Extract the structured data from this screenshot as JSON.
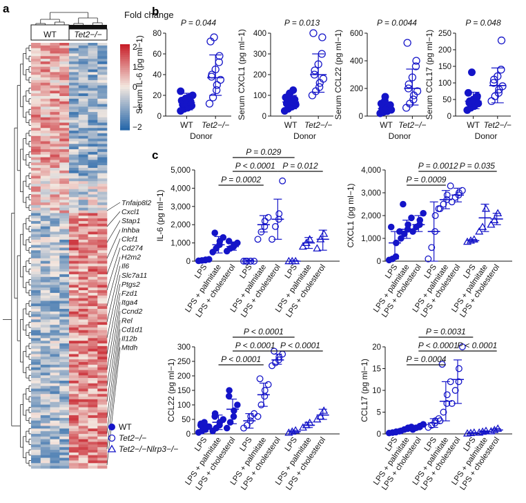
{
  "panel_labels": {
    "a": "a",
    "b": "b",
    "c": "c"
  },
  "legend_markers": {
    "items": [
      {
        "label": "WT",
        "marker": "filled-circle"
      },
      {
        "label": "Tet2−/−",
        "marker": "open-circle"
      },
      {
        "label": "Tet2−/−Nlrp3−/−",
        "marker": "open-triangle"
      }
    ]
  },
  "colors": {
    "blue": "#1414c8",
    "red": "#c8202a",
    "neutral": "#f3e8e0"
  },
  "chart_data": [
    {
      "id": "heatmap",
      "type": "heatmap",
      "group_labels": [
        "WT",
        "Tet2−/−"
      ],
      "colorbar_title": "Fold change",
      "colorbar_ticks": [
        "2",
        "1",
        "0",
        "−1",
        "−2"
      ],
      "colorbar_range": [
        -2,
        2
      ],
      "n_rows": 160,
      "n_cols": 8,
      "gene_labels": [
        "Tnfaip8l2",
        "Cxcl1",
        "Stap1",
        "Inhba",
        "Clcf1",
        "Cd274",
        "H2m2",
        "Il6",
        "Slc7a11",
        "Ptgs2",
        "Fzd1",
        "Itga4",
        "Ccnd2",
        "Rel",
        "Cd1d1",
        "Il12b",
        "Mtdh"
      ]
    },
    {
      "id": "b1",
      "type": "scatter",
      "group_labels": [
        "WT",
        "Tet2−/−"
      ],
      "xlabel": "Donor",
      "ylabel": "Serum IL-6 (pg ml−1)",
      "p_value": "P = 0.044",
      "ylim": [
        0,
        80
      ],
      "yticks": [
        "0",
        "20",
        "40",
        "60",
        "80"
      ],
      "groups": [
        {
          "marker": "filled-circle",
          "mean": 13,
          "sd": [
            6,
            22
          ],
          "points": [
            5,
            7,
            8,
            9,
            10,
            11,
            12,
            12,
            13,
            14,
            15,
            16,
            17,
            18,
            20,
            24
          ]
        },
        {
          "marker": "open-circle",
          "mean": 37,
          "sd": [
            20,
            59
          ],
          "points": [
            12,
            18,
            25,
            30,
            35,
            38,
            40,
            45,
            52,
            58,
            72,
            76
          ]
        }
      ]
    },
    {
      "id": "b2",
      "type": "scatter",
      "group_labels": [
        "WT",
        "Tet2−/−"
      ],
      "xlabel": "Donor",
      "ylabel": "Serum CXCL1 (pg ml−1)",
      "p_value": "P = 0.013",
      "ylim": [
        0,
        400
      ],
      "yticks": [
        "0",
        "100",
        "200",
        "300",
        "400"
      ],
      "groups": [
        {
          "marker": "filled-circle",
          "mean": 68,
          "sd": [
            35,
            100
          ],
          "points": [
            25,
            35,
            45,
            50,
            55,
            60,
            65,
            70,
            75,
            80,
            90,
            100,
            110,
            125
          ]
        },
        {
          "marker": "open-circle",
          "mean": 200,
          "sd": [
            115,
            300
          ],
          "points": [
            100,
            120,
            140,
            160,
            180,
            200,
            220,
            250,
            300,
            380,
            400
          ]
        }
      ]
    },
    {
      "id": "b3",
      "type": "scatter",
      "group_labels": [
        "WT",
        "Tet2−/−"
      ],
      "xlabel": "Donor",
      "ylabel": "Serum CCL22 (pg ml−1)",
      "p_value": "P = 0.0044",
      "ylim": [
        0,
        600
      ],
      "yticks": [
        "0",
        "200",
        "400",
        "600"
      ],
      "groups": [
        {
          "marker": "filled-circle",
          "mean": 55,
          "sd": [
            25,
            90
          ],
          "points": [
            20,
            30,
            35,
            40,
            45,
            50,
            55,
            60,
            70,
            80,
            90,
            110,
            140
          ]
        },
        {
          "marker": "open-circle",
          "mean": 200,
          "sd": [
            80,
            340
          ],
          "points": [
            60,
            90,
            120,
            150,
            180,
            200,
            230,
            280,
            360,
            400,
            530
          ]
        }
      ]
    },
    {
      "id": "b4",
      "type": "scatter",
      "group_labels": [
        "WT",
        "Tet2−/−"
      ],
      "xlabel": "Donor",
      "ylabel": "Serum CCL17 (pg ml−1)",
      "p_value": "P = 0.048",
      "ylim": [
        0,
        250
      ],
      "yticks": [
        "0",
        "50",
        "100",
        "150",
        "200",
        "250"
      ],
      "groups": [
        {
          "marker": "filled-circle",
          "mean": 45,
          "sd": [
            22,
            72
          ],
          "points": [
            18,
            25,
            30,
            35,
            38,
            40,
            45,
            50,
            55,
            60,
            70,
            132
          ]
        },
        {
          "marker": "open-circle",
          "mean": 92,
          "sd": [
            40,
            145
          ],
          "points": [
            45,
            60,
            70,
            80,
            90,
            100,
            110,
            120,
            140,
            228
          ]
        }
      ]
    },
    {
      "id": "c1",
      "type": "scatter",
      "ylabel": "IL-6 (pg ml−1)",
      "ylim": [
        0,
        5000
      ],
      "yticks": [
        "0",
        "1,000",
        "2,000",
        "3,000",
        "4,000",
        "5,000"
      ],
      "categories": [
        "LPS",
        "LPS + palmitate",
        "LPS + cholesterol",
        "LPS",
        "LPS + palmitate",
        "LPS + cholesterol",
        "LPS",
        "LPS + palmitate",
        "LPS + cholesterol"
      ],
      "brackets": [
        {
          "from": 1,
          "to": 4,
          "label": "P = 0.0002",
          "level": 0
        },
        {
          "from": 2,
          "to": 5,
          "label": "P < 0.0001",
          "level": 1
        },
        {
          "from": 5,
          "to": 8,
          "label": "P = 0.012",
          "level": 1
        },
        {
          "from": 2,
          "to": 6,
          "label": "P = 0.029",
          "level": 2
        }
      ],
      "groups": [
        {
          "marker": "filled-circle",
          "mean": 50,
          "sd": [
            0,
            100
          ],
          "points": [
            20,
            40,
            60,
            80,
            100
          ]
        },
        {
          "marker": "filled-circle",
          "mean": 900,
          "sd": [
            450,
            1350
          ],
          "points": [
            500,
            700,
            900,
            1100,
            1300,
            1550
          ]
        },
        {
          "marker": "filled-circle",
          "mean": 800,
          "sd": [
            600,
            1050
          ],
          "points": [
            550,
            700,
            800,
            900,
            1000,
            1100
          ]
        },
        {
          "marker": "open-circle",
          "mean": 0,
          "sd": [
            0,
            50
          ],
          "points": [
            0,
            0,
            0,
            0,
            0,
            0
          ]
        },
        {
          "marker": "open-circle",
          "mean": 2000,
          "sd": [
            1600,
            2500
          ],
          "points": [
            1200,
            1600,
            1900,
            2200,
            2400
          ]
        },
        {
          "marker": "open-circle",
          "mean": 2300,
          "sd": [
            1200,
            3400
          ],
          "points": [
            1200,
            1900,
            2300,
            2600,
            4400
          ]
        },
        {
          "marker": "open-triangle",
          "mean": 0,
          "sd": [
            0,
            30
          ],
          "points": [
            0,
            0,
            0
          ]
        },
        {
          "marker": "open-triangle",
          "mean": 1000,
          "sd": [
            700,
            1300
          ],
          "points": [
            800,
            1000,
            1200
          ]
        },
        {
          "marker": "open-triangle",
          "mean": 1200,
          "sd": [
            600,
            1700
          ],
          "points": [
            700,
            1200,
            1500
          ]
        }
      ]
    },
    {
      "id": "c2",
      "type": "scatter",
      "ylabel": "CXCL1 (pg ml−1)",
      "ylim": [
        0,
        4000
      ],
      "yticks": [
        "0",
        "1,000",
        "2,000",
        "3,000",
        "4,000"
      ],
      "categories": [
        "LPS",
        "LPS + palmitate",
        "LPS + cholesterol",
        "LPS",
        "LPS + palmitate",
        "LPS + cholesterol",
        "LPS",
        "LPS + palmitate",
        "LPS + cholesterol"
      ],
      "brackets": [
        {
          "from": 1,
          "to": 4,
          "label": "P = 0.0009",
          "level": 0
        },
        {
          "from": 2,
          "to": 5,
          "label": "P = 0.0012",
          "level": 1
        },
        {
          "from": 5,
          "to": 8,
          "label": "P = 0.035",
          "level": 1
        }
      ],
      "groups": [
        {
          "marker": "filled-circle",
          "mean": 800,
          "sd": [
            100,
            1300
          ],
          "points": [
            50,
            100,
            200,
            800,
            1300,
            1500
          ]
        },
        {
          "marker": "filled-circle",
          "mean": 1400,
          "sd": [
            1000,
            1800
          ],
          "points": [
            1000,
            1200,
            1400,
            1600,
            1900,
            2500
          ]
        },
        {
          "marker": "filled-circle",
          "mean": 1600,
          "sd": [
            1300,
            2000
          ],
          "points": [
            1300,
            1500,
            1600,
            1800,
            2100
          ]
        },
        {
          "marker": "open-circle",
          "mean": 1300,
          "sd": [
            0,
            2600
          ],
          "points": [
            100,
            600,
            1300,
            2000,
            2300
          ]
        },
        {
          "marker": "open-circle",
          "mean": 2700,
          "sd": [
            2300,
            3100
          ],
          "points": [
            2300,
            2500,
            2700,
            2900,
            3300
          ]
        },
        {
          "marker": "open-circle",
          "mean": 2900,
          "sd": [
            2600,
            3200
          ],
          "points": [
            2600,
            2800,
            2900,
            3000,
            3100
          ]
        },
        {
          "marker": "open-triangle",
          "mean": 900,
          "sd": [
            850,
            950
          ],
          "points": [
            850,
            900,
            950
          ]
        },
        {
          "marker": "open-triangle",
          "mean": 1900,
          "sd": [
            1300,
            2500
          ],
          "points": [
            1300,
            1500,
            2300
          ]
        },
        {
          "marker": "open-triangle",
          "mean": 1850,
          "sd": [
            1600,
            2100
          ],
          "points": [
            1600,
            1800,
            2100
          ]
        }
      ]
    },
    {
      "id": "c3",
      "type": "scatter",
      "ylabel": "CCL22 (pg ml−1)",
      "ylim": [
        0,
        300
      ],
      "yticks": [
        "0",
        "50",
        "100",
        "150",
        "200",
        "250",
        "300"
      ],
      "categories": [
        "LPS",
        "LPS + palmitate",
        "LPS + cholesterol",
        "LPS",
        "LPS + palmitate",
        "LPS + cholesterol",
        "LPS",
        "LPS + palmitate",
        "LPS + cholesterol"
      ],
      "brackets": [
        {
          "from": 1,
          "to": 4,
          "label": "P < 0.0001",
          "level": 0
        },
        {
          "from": 2,
          "to": 5,
          "label": "P < 0.0001",
          "level": 1
        },
        {
          "from": 5,
          "to": 8,
          "label": "P < 0.0001",
          "level": 1
        },
        {
          "from": 2,
          "to": 6,
          "label": "P < 0.0001",
          "level": 2
        }
      ],
      "groups": [
        {
          "marker": "filled-circle",
          "mean": 22,
          "sd": [
            8,
            35
          ],
          "points": [
            5,
            10,
            15,
            20,
            25,
            30,
            35,
            40
          ]
        },
        {
          "marker": "filled-circle",
          "mean": 40,
          "sd": [
            15,
            65
          ],
          "points": [
            10,
            20,
            30,
            40,
            50,
            60,
            70
          ]
        },
        {
          "marker": "filled-circle",
          "mean": 85,
          "sd": [
            35,
            120
          ],
          "points": [
            20,
            40,
            60,
            80,
            100,
            130,
            150
          ]
        },
        {
          "marker": "open-circle",
          "mean": 45,
          "sd": [
            20,
            70
          ],
          "points": [
            20,
            30,
            45,
            60,
            70
          ]
        },
        {
          "marker": "open-circle",
          "mean": 135,
          "sd": [
            95,
            175
          ],
          "points": [
            60,
            100,
            130,
            150,
            170,
            190
          ]
        },
        {
          "marker": "open-circle",
          "mean": 255,
          "sd": [
            240,
            275
          ],
          "points": [
            235,
            245,
            255,
            265,
            275,
            285
          ]
        },
        {
          "marker": "open-triangle",
          "mean": 8,
          "sd": [
            4,
            12
          ],
          "points": [
            4,
            8,
            12
          ]
        },
        {
          "marker": "open-triangle",
          "mean": 30,
          "sd": [
            22,
            40
          ],
          "points": [
            22,
            30,
            38
          ]
        },
        {
          "marker": "open-triangle",
          "mean": 65,
          "sd": [
            50,
            85
          ],
          "points": [
            50,
            60,
            80
          ]
        }
      ]
    },
    {
      "id": "c4",
      "type": "scatter",
      "ylabel": "CCL17 (pg ml−1)",
      "ylim": [
        0,
        20
      ],
      "yticks": [
        "0",
        "5",
        "10",
        "15",
        "20"
      ],
      "categories": [
        "LPS",
        "LPS + palmitate",
        "LPS + cholesterol",
        "LPS",
        "LPS + palmitate",
        "LPS + cholesterol",
        "LPS",
        "LPS + palmitate",
        "LPS + cholesterol"
      ],
      "brackets": [
        {
          "from": 1,
          "to": 4,
          "label": "P = 0.0004",
          "level": 0
        },
        {
          "from": 2,
          "to": 5,
          "label": "P < 0.0001",
          "level": 1
        },
        {
          "from": 5,
          "to": 8,
          "label": "P < 0.0001",
          "level": 1
        },
        {
          "from": 2,
          "to": 6,
          "label": "P = 0.0031",
          "level": 2
        }
      ],
      "groups": [
        {
          "marker": "filled-circle",
          "mean": 0.4,
          "sd": [
            0.2,
            0.6
          ],
          "points": [
            0.2,
            0.3,
            0.4,
            0.5,
            0.6
          ]
        },
        {
          "marker": "filled-circle",
          "mean": 1.2,
          "sd": [
            0.8,
            1.6
          ],
          "points": [
            0.7,
            1.0,
            1.2,
            1.4,
            1.6
          ]
        },
        {
          "marker": "filled-circle",
          "mean": 1.6,
          "sd": [
            1.2,
            2.0
          ],
          "points": [
            1.0,
            1.4,
            1.6,
            1.8,
            2.2
          ]
        },
        {
          "marker": "open-circle",
          "mean": 2.5,
          "sd": [
            1.5,
            3.5
          ],
          "points": [
            1.5,
            2.0,
            2.5,
            3.0,
            3.5
          ]
        },
        {
          "marker": "open-circle",
          "mean": 7.5,
          "sd": [
            3,
            12
          ],
          "points": [
            3,
            5,
            7,
            9,
            12,
            16
          ]
        },
        {
          "marker": "open-circle",
          "mean": 12.5,
          "sd": [
            7,
            17
          ],
          "points": [
            7,
            10,
            12,
            15,
            20
          ]
        },
        {
          "marker": "open-triangle",
          "mean": 0.2,
          "sd": [
            0.1,
            0.3
          ],
          "points": [
            0.1,
            0.2,
            0.3
          ]
        },
        {
          "marker": "open-triangle",
          "mean": 0.5,
          "sd": [
            0.3,
            0.7
          ],
          "points": [
            0.3,
            0.5,
            0.7
          ]
        },
        {
          "marker": "open-triangle",
          "mean": 0.9,
          "sd": [
            0.6,
            1.2
          ],
          "points": [
            0.6,
            0.9,
            1.2
          ]
        }
      ]
    }
  ]
}
